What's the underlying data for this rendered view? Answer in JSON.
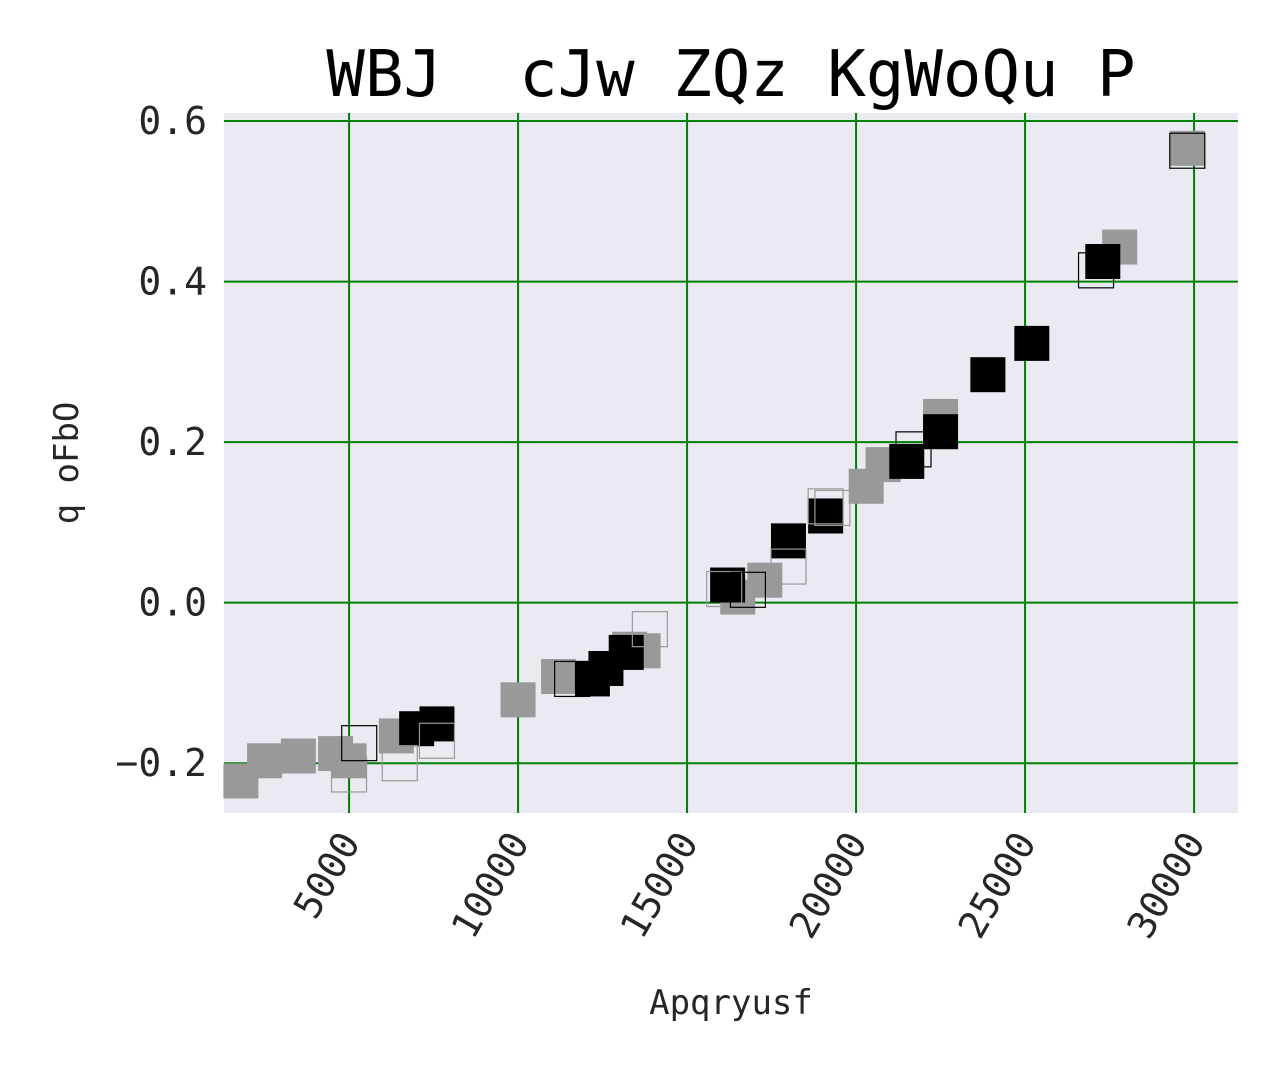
{
  "chart_data": {
    "type": "scatter",
    "title": "WBJ  cJw ZQz KgWoQu P",
    "xlabel": "Apqryusf",
    "ylabel": "q oFbO",
    "xlim": [
      1300,
      31300
    ],
    "ylim": [
      -0.262,
      0.61
    ],
    "x_ticks": [
      5000,
      10000,
      15000,
      20000,
      25000,
      30000
    ],
    "y_ticks": [
      -0.2,
      0.0,
      0.2,
      0.4,
      0.6
    ],
    "x_tick_labels": [
      "5000",
      "10000",
      "15000",
      "20000",
      "25000",
      "30000"
    ],
    "y_tick_labels": [
      "−0.2",
      "0.0",
      "0.2",
      "0.4",
      "0.6"
    ],
    "grid": true,
    "colors": {
      "background": "#eaeaf2",
      "grid": "#008000",
      "dark_series": "#000000",
      "gray_series": "#999999"
    },
    "series": [
      {
        "color": "#999999",
        "style": "filled",
        "points": [
          [
            1800,
            -0.222
          ],
          [
            2500,
            -0.197
          ],
          [
            3500,
            -0.191
          ],
          [
            4600,
            -0.188
          ],
          [
            5000,
            -0.197
          ],
          [
            6400,
            -0.166
          ],
          [
            10000,
            -0.121
          ],
          [
            11200,
            -0.092
          ],
          [
            13300,
            -0.058
          ],
          [
            13700,
            -0.06
          ],
          [
            16500,
            0.007
          ],
          [
            17300,
            0.028
          ],
          [
            20300,
            0.145
          ],
          [
            20800,
            0.172
          ],
          [
            22500,
            0.232
          ],
          [
            27800,
            0.443
          ],
          [
            29800,
            0.566
          ]
        ]
      },
      {
        "color": "#000000",
        "style": "filled",
        "points": [
          [
            7000,
            -0.157
          ],
          [
            7600,
            -0.151
          ],
          [
            12200,
            -0.095
          ],
          [
            12600,
            -0.082
          ],
          [
            13200,
            -0.062
          ],
          [
            16200,
            0.022
          ],
          [
            18000,
            0.077
          ],
          [
            19100,
            0.108
          ],
          [
            21500,
            0.176
          ],
          [
            22500,
            0.213
          ],
          [
            23900,
            0.284
          ],
          [
            25200,
            0.323
          ],
          [
            27300,
            0.425
          ]
        ]
      },
      {
        "color": "#999999",
        "style": "outline",
        "points": [
          [
            5000,
            -0.214
          ],
          [
            6500,
            -0.2
          ],
          [
            7600,
            -0.172
          ],
          [
            13900,
            -0.033
          ],
          [
            16100,
            0.017
          ],
          [
            18000,
            0.045
          ],
          [
            19300,
            0.118
          ],
          [
            19100,
            0.12
          ]
        ]
      },
      {
        "color": "#000000",
        "style": "outline",
        "points": [
          [
            5300,
            -0.175
          ],
          [
            11600,
            -0.095
          ],
          [
            16800,
            0.016
          ],
          [
            21700,
            0.191
          ],
          [
            27100,
            0.414
          ],
          [
            29800,
            0.563
          ]
        ]
      }
    ]
  }
}
